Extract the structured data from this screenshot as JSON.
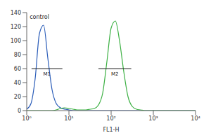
{
  "chart_data": {
    "type": "line",
    "x_label": "FL1-H",
    "log": "x",
    "xlim": [
      1,
      10000
    ],
    "xticks": [
      {
        "value": 1,
        "label": "10⁰"
      },
      {
        "value": 10,
        "label": "10¹"
      },
      {
        "value": 100,
        "label": "10²"
      },
      {
        "value": 1000,
        "label": "10³"
      },
      {
        "value": 10000,
        "label": "10⁴"
      }
    ],
    "ylim": [
      0,
      140
    ],
    "yticks": [
      0,
      20,
      40,
      60,
      80,
      100,
      120,
      140
    ],
    "grid": false,
    "x": [
      1,
      1.26,
      1.58,
      2,
      2.51,
      3.16,
      3.98,
      5.01,
      6.31,
      7.94,
      10,
      12.6,
      15.8,
      20,
      25.1,
      31.6,
      39.8,
      50.1,
      63.1,
      79.4,
      100,
      126,
      158,
      200,
      251,
      316,
      398,
      501,
      631,
      794,
      1000,
      1259,
      1585,
      1995,
      2512,
      3162,
      3981,
      5012,
      6310,
      7943,
      10000
    ],
    "series": [
      {
        "color": "#2a5cb8",
        "values": [
          2,
          10,
          45,
          110,
          122,
          75,
          30,
          10,
          4,
          2,
          1,
          0,
          0,
          0,
          0,
          0,
          0,
          0,
          0,
          0,
          0,
          0,
          0,
          0,
          0,
          0,
          0,
          0,
          0,
          0,
          0,
          0,
          0,
          0,
          0,
          0,
          0,
          0,
          0,
          0,
          0
        ]
      },
      {
        "color": "#3cb043",
        "values": [
          0,
          0,
          0,
          0,
          0,
          0,
          0,
          1,
          3,
          4,
          3,
          2,
          1,
          1,
          1,
          2,
          3,
          8,
          25,
          70,
          118,
          128,
          100,
          55,
          20,
          6,
          2,
          1,
          0,
          0,
          0,
          0,
          0,
          0,
          0,
          0,
          0,
          0,
          0,
          0,
          0
        ]
      }
    ],
    "annotations": [
      {
        "text": "control",
        "x": 2,
        "y": 134
      }
    ],
    "markers": [
      {
        "label": "M1",
        "x": [
          1.3,
          7
        ],
        "y": 60
      },
      {
        "label": "M2",
        "x": [
          50,
          300
        ],
        "y": 60
      }
    ]
  }
}
